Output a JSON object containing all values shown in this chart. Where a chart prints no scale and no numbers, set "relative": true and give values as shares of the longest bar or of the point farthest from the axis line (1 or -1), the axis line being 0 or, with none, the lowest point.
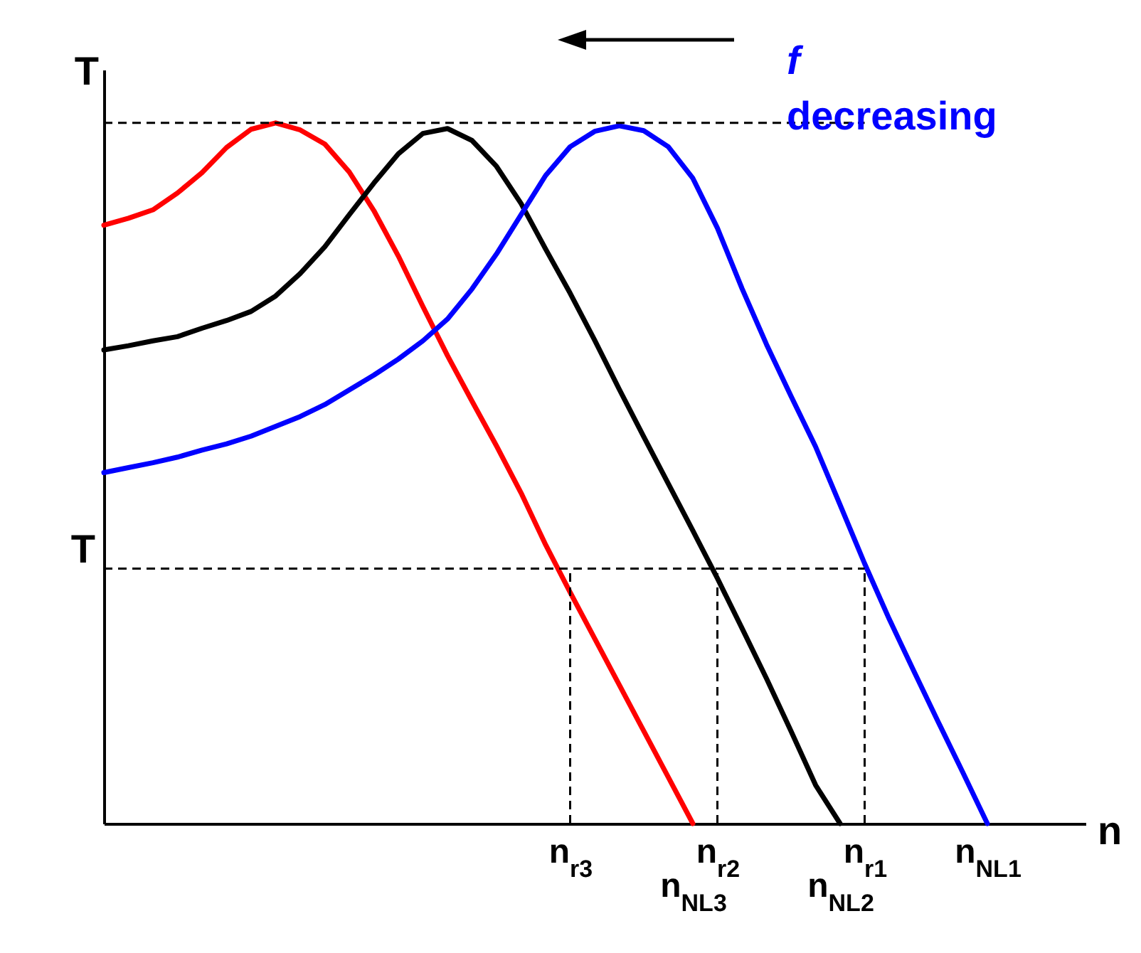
{
  "chart_data": {
    "type": "line",
    "relative": true,
    "xlabel": "n",
    "ylabel": "T",
    "categories": [
      null,
      null,
      null,
      null,
      null,
      null,
      null,
      null,
      null,
      null,
      null,
      null,
      null,
      null,
      null,
      null,
      null,
      null,
      null,
      "n$_{r3}$",
      null,
      null,
      null,
      null,
      "n$_{NL3}$",
      "n$_{r2}$",
      null,
      null,
      null,
      null,
      "n$_{NL2}$",
      "n$_{r1}$",
      null,
      null,
      null,
      null,
      "n$_{NL1}$",
      null,
      null,
      null,
      null
    ],
    "series": [
      {
        "color": "#ff0000",
        "values": [
          0.854,
          0.864,
          0.876,
          0.9,
          0.929,
          0.965,
          0.991,
          1,
          0.99,
          0.97,
          0.93,
          0.875,
          0.81,
          0.738,
          0.668,
          0.603,
          0.539,
          0.472,
          0.398,
          0.33,
          0.264,
          0.198,
          0.132,
          0.066,
          0,
          null,
          null,
          null,
          null,
          null,
          null,
          null,
          null,
          null,
          null,
          null,
          null,
          null,
          null,
          null,
          null
        ]
      },
      {
        "color": "#000000",
        "values": [
          0.676,
          0.682,
          0.689,
          0.695,
          0.707,
          0.718,
          0.731,
          0.753,
          0.785,
          0.823,
          0.869,
          0.914,
          0.956,
          0.985,
          0.992,
          0.975,
          0.938,
          0.885,
          0.82,
          0.757,
          0.69,
          0.62,
          0.552,
          0.485,
          0.418,
          0.35,
          0.279,
          0.207,
          0.132,
          0.055,
          0,
          null,
          null,
          null,
          null,
          null,
          null,
          null,
          null,
          null,
          null
        ]
      },
      {
        "color": "#0000ff",
        "values": [
          0.501,
          0.508,
          0.515,
          0.523,
          0.533,
          0.542,
          0.553,
          0.567,
          0.581,
          0.598,
          0.619,
          0.64,
          0.663,
          0.689,
          0.72,
          0.763,
          0.813,
          0.869,
          0.925,
          0.966,
          0.988,
          0.996,
          0.989,
          0.966,
          0.921,
          0.85,
          0.764,
          0.684,
          0.61,
          0.538,
          0.455,
          0.371,
          0.292,
          0.218,
          0.145,
          0.073,
          0,
          null,
          null,
          null,
          null
        ]
      }
    ],
    "ref_lines": [
      {
        "axis": "y",
        "value": 1,
        "line_style": "dashed"
      },
      {
        "axis": "y",
        "value": 0.364,
        "label": "T",
        "line_style": "dashed"
      },
      {
        "axis": "x",
        "value": "n$_{r3}$",
        "line_style": "dashed"
      },
      {
        "axis": "x",
        "value": "n$_{r2}$",
        "line_style": "dashed"
      },
      {
        "axis": "x",
        "value": "n$_{r1}$",
        "line_style": "dashed"
      }
    ],
    "annotations": [
      "f",
      "decreasing"
    ],
    "line_style": "solid",
    "marker": "none"
  }
}
